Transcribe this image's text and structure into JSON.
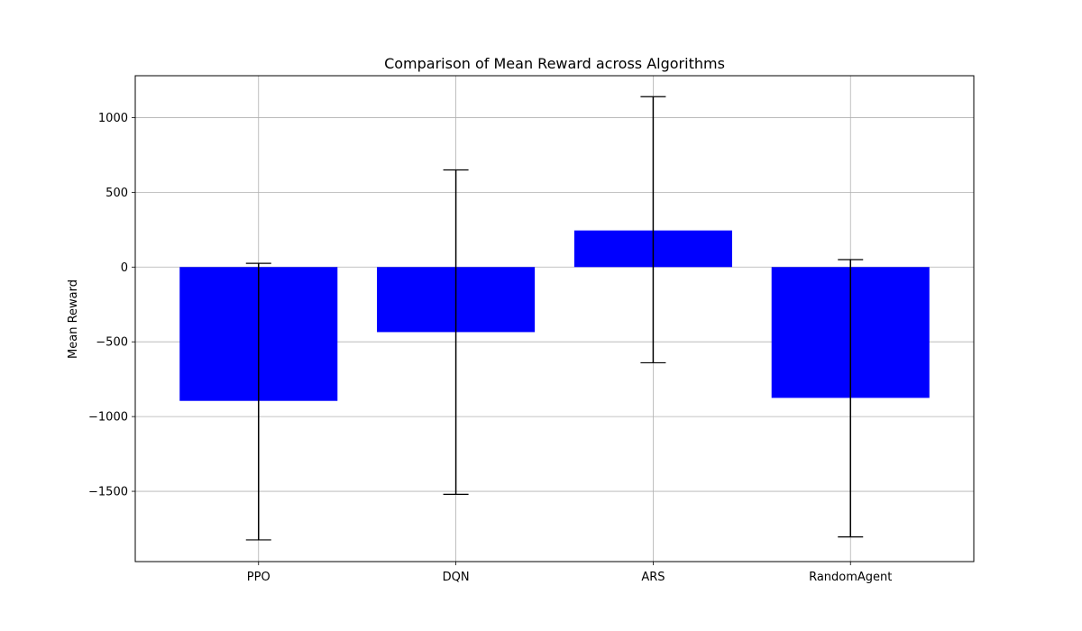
{
  "chart_data": {
    "type": "bar",
    "title": "Comparison of Mean Reward across Algorithms",
    "xlabel": "",
    "ylabel": "Mean Reward",
    "categories": [
      "PPO",
      "DQN",
      "ARS",
      "RandomAgent"
    ],
    "values": [
      -895,
      -435,
      245,
      -875
    ],
    "error_low": [
      -1825,
      -1520,
      -640,
      -1805
    ],
    "error_high": [
      25,
      650,
      1140,
      50
    ],
    "ylim": [
      -1970,
      1280
    ],
    "yticks": [
      -1500,
      -1000,
      -500,
      0,
      500,
      1000
    ],
    "ytick_labels": [
      "−1500",
      "−1000",
      "−500",
      "0",
      "500",
      "1000"
    ],
    "grid": true,
    "bar_color": "#0000ff",
    "error_color": "#000000"
  }
}
